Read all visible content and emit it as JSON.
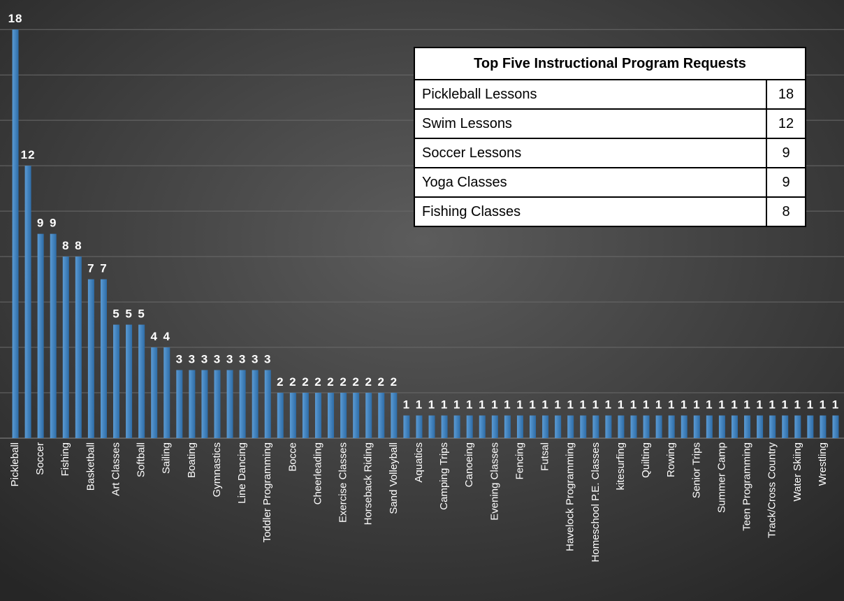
{
  "chart_data": {
    "type": "bar",
    "categories": [
      "Pickleball",
      null,
      "Soccer",
      null,
      "Fishing",
      null,
      "Basketball",
      null,
      "Art Classes",
      null,
      "Softball",
      null,
      "Sailing",
      null,
      "Boating",
      null,
      "Gymnastics",
      null,
      "Line Dancing",
      null,
      "Toddler Programming",
      null,
      "Bocce",
      null,
      "Cheerleading",
      null,
      "Exercise Classes",
      null,
      "Horseback Riding",
      null,
      "Sand Volleyball",
      null,
      "Aquatics",
      null,
      "Camping Trips",
      null,
      "Canoeing",
      null,
      "Evening Classes",
      null,
      "Fencing",
      null,
      "Futsal",
      null,
      "Havelock Programming",
      null,
      "Homeschool P.E. Classes",
      null,
      "kitesurfing",
      null,
      "Quilting",
      null,
      "Rowing",
      null,
      "Senior Trips",
      null,
      "Summer Camp",
      null,
      "Teen Programming",
      null,
      "Track/Cross Country",
      null,
      "Water Skiing",
      null,
      "Wrestling",
      null
    ],
    "values": [
      18,
      12,
      9,
      9,
      8,
      8,
      7,
      7,
      5,
      5,
      5,
      4,
      4,
      3,
      3,
      3,
      3,
      3,
      3,
      3,
      3,
      2,
      2,
      2,
      2,
      2,
      2,
      2,
      2,
      2,
      2,
      1,
      1,
      1,
      1,
      1,
      1,
      1,
      1,
      1,
      1,
      1,
      1,
      1,
      1,
      1,
      1,
      1,
      1,
      1,
      1,
      1,
      1,
      1,
      1,
      1,
      1,
      1,
      1,
      1,
      1,
      1,
      1,
      1,
      1,
      1
    ],
    "color": "#3f84c0",
    "ylim": [
      0,
      19.3
    ],
    "yticks": [
      2,
      4,
      6,
      8,
      10,
      12,
      14,
      16,
      18
    ],
    "grid": true,
    "show_tick_labels": false
  },
  "table": {
    "title": "Top Five Instructional Program Requests",
    "rows": [
      [
        "Pickleball Lessons",
        "18"
      ],
      [
        "Swim Lessons",
        "12"
      ],
      [
        "Soccer Lessons",
        "9"
      ],
      [
        "Yoga Classes",
        "9"
      ],
      [
        "Fishing Classes",
        "8"
      ]
    ]
  }
}
